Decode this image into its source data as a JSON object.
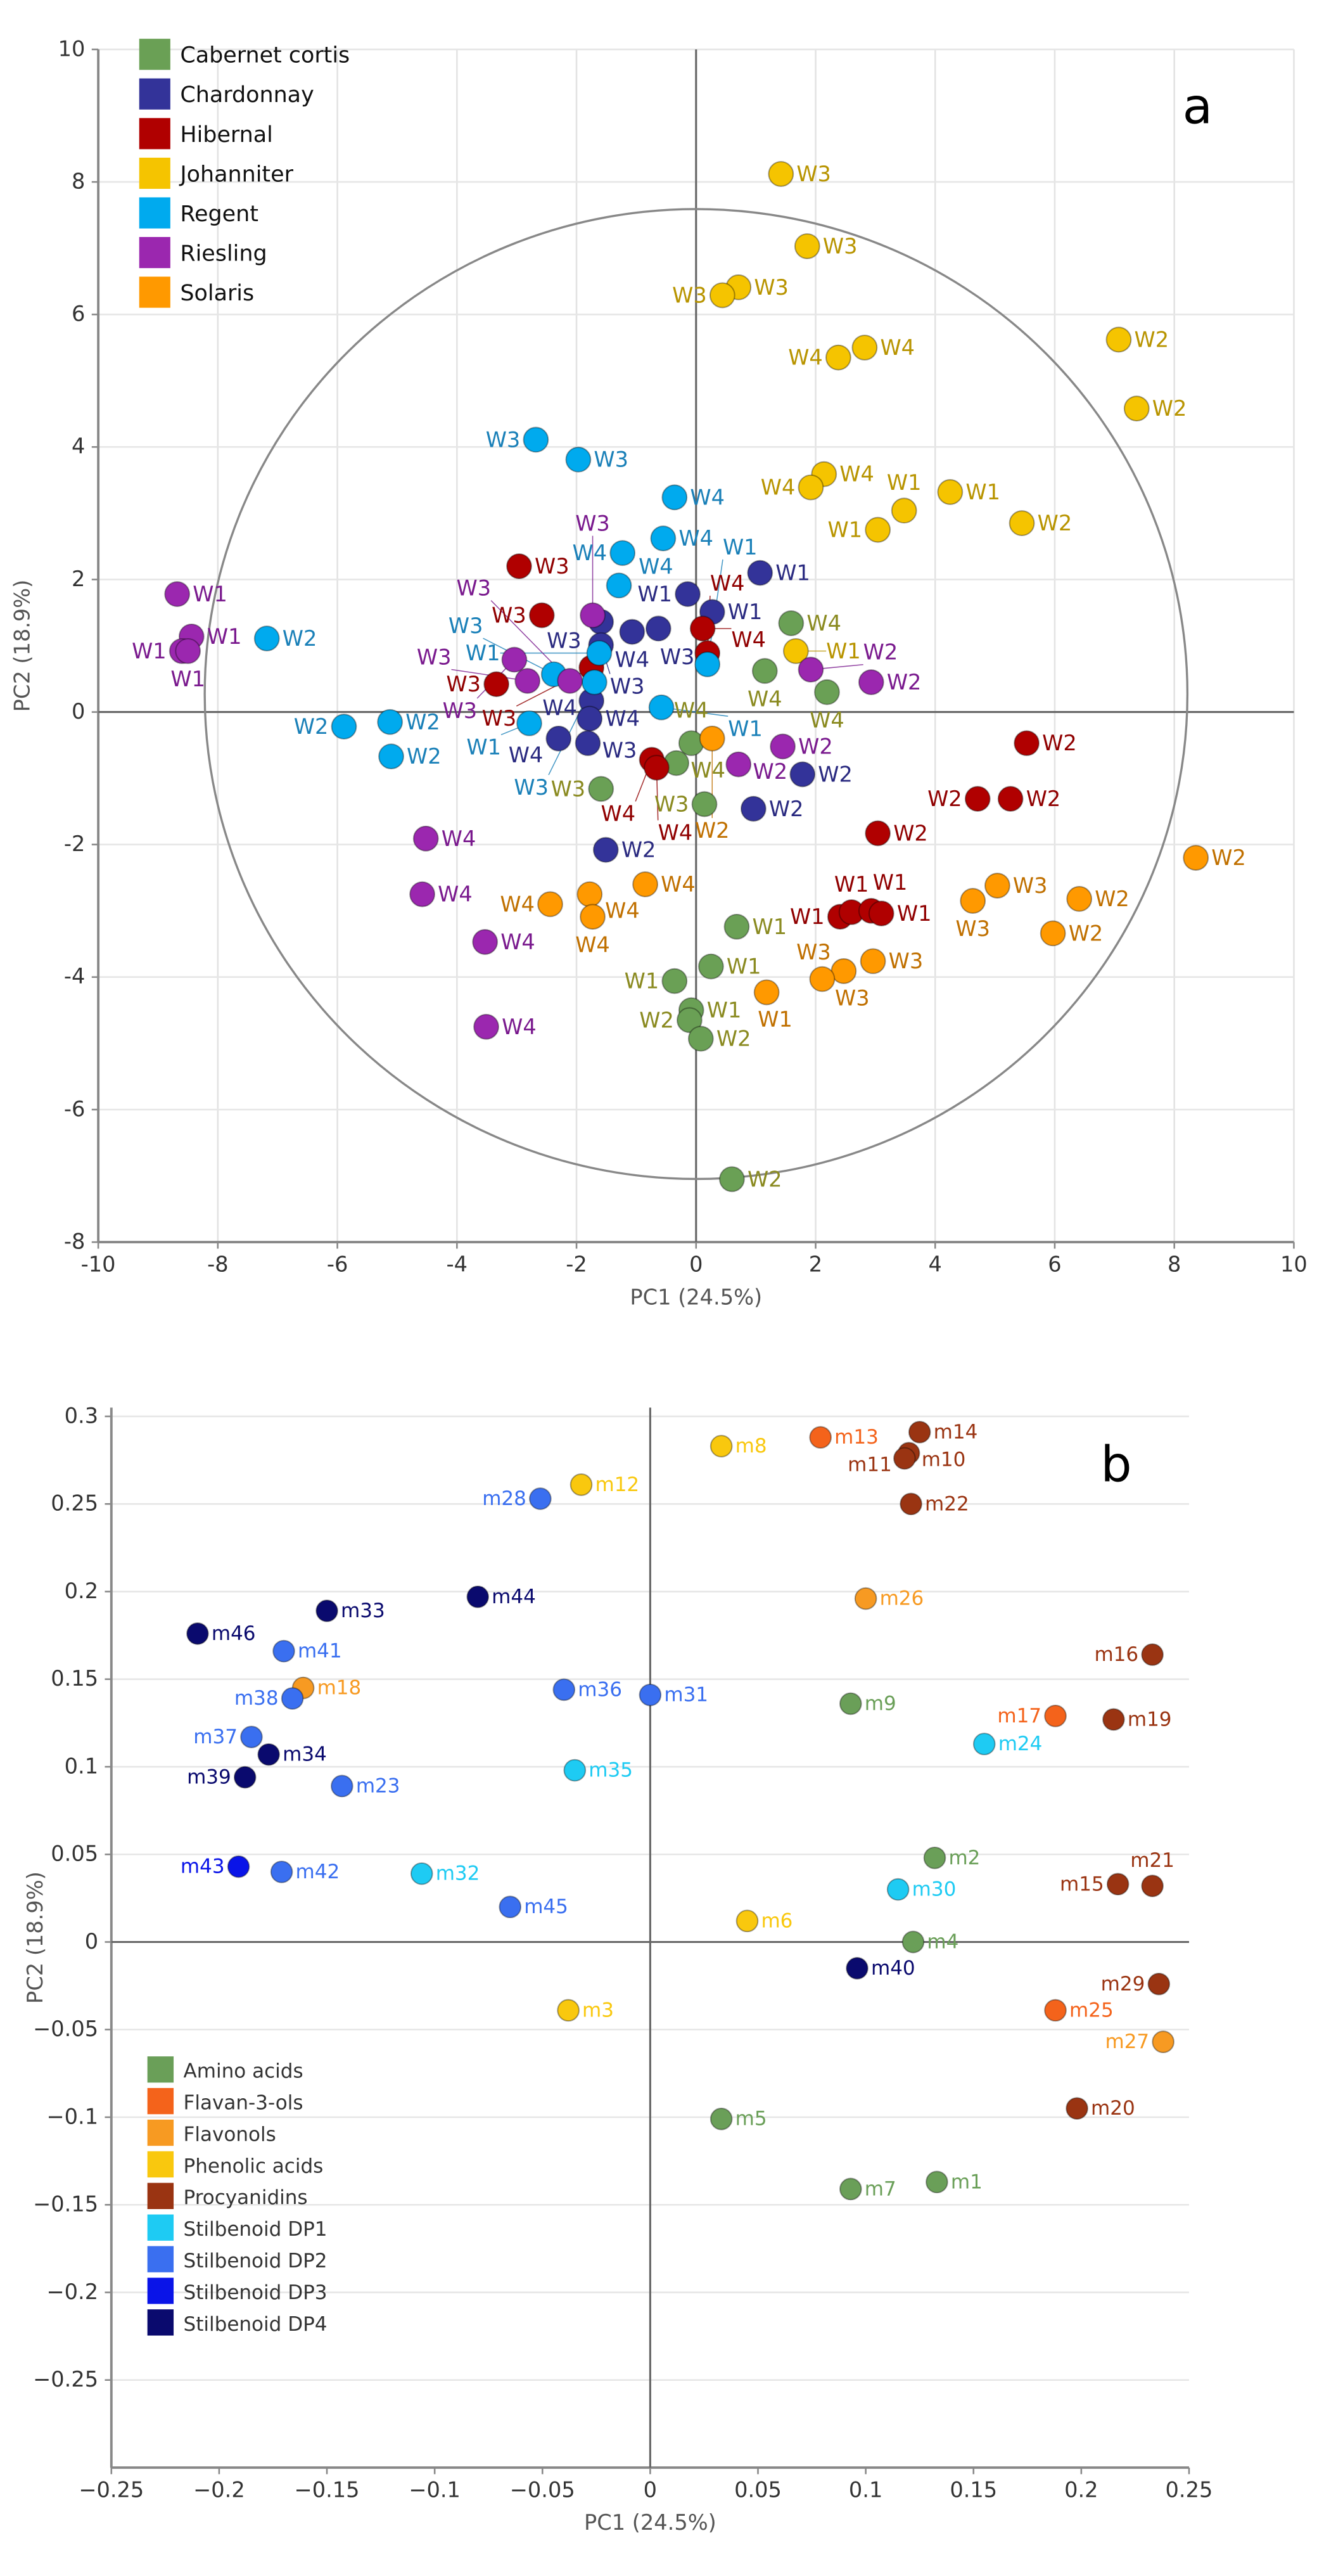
{
  "chart_data": [
    {
      "type": "scatter",
      "panel_label": "a",
      "xlabel": "PC1 (24.5%)",
      "ylabel": "PC2 (18.9%)",
      "xlim": [
        -10,
        10
      ],
      "ylim": [
        -8,
        10
      ],
      "xticks": [
        -10,
        -8,
        -6,
        -4,
        -2,
        0,
        2,
        4,
        6,
        8,
        10
      ],
      "yticks": [
        -8,
        -6,
        -4,
        -2,
        0,
        2,
        4,
        6,
        8,
        10
      ],
      "grid": true,
      "legend_position": "top-left",
      "series": [
        {
          "name": "Cabernet cortis",
          "color": "#6aa055",
          "label_color": "#8a8a20",
          "points": [
            [
              1.59,
              1.34,
              "W4"
            ],
            [
              1.15,
              0.62,
              "W4"
            ],
            [
              2.19,
              0.3,
              "W4"
            ],
            [
              -0.08,
              -0.47,
              "W4"
            ],
            [
              -0.33,
              -0.77,
              "W4"
            ],
            [
              -1.59,
              -1.16,
              "W3"
            ],
            [
              0.14,
              -1.39,
              "W3"
            ],
            [
              0.68,
              -3.24,
              "W1"
            ],
            [
              0.25,
              -3.84,
              "W1"
            ],
            [
              -0.36,
              -4.06,
              "W1"
            ],
            [
              -0.08,
              -4.5,
              "W1"
            ],
            [
              -0.11,
              -4.65,
              "W2"
            ],
            [
              0.08,
              -4.93,
              "W2"
            ],
            [
              0.6,
              -7.05,
              "W2"
            ]
          ]
        },
        {
          "name": "Chardonnay",
          "color": "#333399",
          "label_color": "#2a2a80",
          "points": [
            [
              1.07,
              2.1,
              "W1"
            ],
            [
              -0.14,
              1.78,
              "W1"
            ],
            [
              0.27,
              1.51,
              "W1"
            ],
            [
              -1.59,
              1.36,
              "W3"
            ],
            [
              -1.07,
              1.21,
              "W4"
            ],
            [
              -0.63,
              1.26,
              "W3"
            ],
            [
              -1.59,
              1.01,
              "W3"
            ],
            [
              -1.75,
              0.17,
              "W4"
            ],
            [
              -1.78,
              -0.1,
              "W4"
            ],
            [
              -2.3,
              -0.4,
              "W4"
            ],
            [
              -1.81,
              -0.47,
              "W3"
            ],
            [
              1.78,
              -0.94,
              "W2"
            ],
            [
              0.96,
              -1.46,
              "W2"
            ],
            [
              -1.51,
              -2.08,
              "W2"
            ]
          ]
        },
        {
          "name": "Hibernal",
          "color": "#b00000",
          "label_color": "#900000",
          "points": [
            [
              -2.96,
              2.2,
              "W3"
            ],
            [
              -2.58,
              1.46,
              "W3"
            ],
            [
              -3.34,
              0.42,
              "W3"
            ],
            [
              -1.75,
              0.67,
              "W3"
            ],
            [
              0.11,
              1.26,
              "W4"
            ],
            [
              0.19,
              0.89,
              "W4"
            ],
            [
              -0.74,
              -0.72,
              "W4"
            ],
            [
              -0.66,
              -0.84,
              "W4"
            ],
            [
              5.53,
              -0.47,
              "W2"
            ],
            [
              4.71,
              -1.31,
              "W2"
            ],
            [
              5.26,
              -1.31,
              "W2"
            ],
            [
              3.04,
              -1.83,
              "W2"
            ],
            [
              2.41,
              -3.09,
              "W1"
            ],
            [
              2.6,
              -3.02,
              "W1"
            ],
            [
              2.93,
              -3.0,
              "W1"
            ],
            [
              3.1,
              -3.04,
              "W1"
            ]
          ]
        },
        {
          "name": "Johanniter",
          "color": "#f5c400",
          "label_color": "#b89400",
          "points": [
            [
              1.42,
              8.12,
              "W3"
            ],
            [
              1.86,
              7.03,
              "W3"
            ],
            [
              0.71,
              6.41,
              "W3"
            ],
            [
              0.44,
              6.29,
              "W3"
            ],
            [
              2.82,
              5.5,
              "W4"
            ],
            [
              2.38,
              5.35,
              "W4"
            ],
            [
              7.07,
              5.62,
              "W2"
            ],
            [
              7.37,
              4.58,
              "W2"
            ],
            [
              2.14,
              3.59,
              "W4"
            ],
            [
              1.92,
              3.39,
              "W4"
            ],
            [
              4.25,
              3.32,
              "W1"
            ],
            [
              3.48,
              3.04,
              "W1"
            ],
            [
              3.04,
              2.75,
              "W1"
            ],
            [
              5.45,
              2.85,
              "W2"
            ],
            [
              1.67,
              0.92,
              "W1"
            ]
          ]
        },
        {
          "name": "Regent",
          "color": "#00aaee",
          "label_color": "#1a80b8",
          "points": [
            [
              -2.68,
              4.11,
              "W3"
            ],
            [
              -1.97,
              3.81,
              "W3"
            ],
            [
              -0.36,
              3.24,
              "W4"
            ],
            [
              -0.55,
              2.62,
              "W4"
            ],
            [
              -1.23,
              2.4,
              "W4"
            ],
            [
              -1.29,
              1.91,
              "W4"
            ],
            [
              -7.18,
              1.11,
              "W2"
            ],
            [
              -5.12,
              -0.15,
              "W2"
            ],
            [
              -5.89,
              -0.22,
              "W2"
            ],
            [
              -5.1,
              -0.67,
              "W2"
            ],
            [
              -1.62,
              0.89,
              "W1"
            ],
            [
              -1.7,
              0.45,
              "W3"
            ],
            [
              -2.38,
              0.57,
              "W3"
            ],
            [
              -2.79,
              -0.17,
              "W1"
            ],
            [
              -0.58,
              0.07,
              "W1"
            ],
            [
              0.19,
              0.72,
              "W1"
            ]
          ]
        },
        {
          "name": "Riesling",
          "color": "#9b27af",
          "label_color": "#7a1a8e",
          "points": [
            [
              -8.68,
              1.78,
              "W1"
            ],
            [
              -8.44,
              1.14,
              "W1"
            ],
            [
              -8.6,
              0.92,
              "W1"
            ],
            [
              -8.5,
              0.92,
              "W1"
            ],
            [
              -3.04,
              0.79,
              "W3"
            ],
            [
              -1.73,
              1.46,
              "W3"
            ],
            [
              -2.82,
              0.47,
              "W3"
            ],
            [
              -2.11,
              0.47,
              "W3"
            ],
            [
              1.92,
              0.64,
              "W2"
            ],
            [
              2.93,
              0.45,
              "W2"
            ],
            [
              1.45,
              -0.52,
              "W2"
            ],
            [
              0.71,
              -0.79,
              "W2"
            ],
            [
              -4.52,
              -1.91,
              "W4"
            ],
            [
              -4.58,
              -2.75,
              "W4"
            ],
            [
              -3.53,
              -3.47,
              "W4"
            ],
            [
              -3.51,
              -4.75,
              "W4"
            ]
          ]
        },
        {
          "name": "Solaris",
          "color": "#ff9900",
          "label_color": "#c07000",
          "points": [
            [
              0.27,
              -0.4,
              "W2"
            ],
            [
              8.36,
              -2.2,
              "W2"
            ],
            [
              5.04,
              -2.62,
              "W3"
            ],
            [
              4.63,
              -2.85,
              "W3"
            ],
            [
              6.41,
              -2.82,
              "W2"
            ],
            [
              5.97,
              -3.34,
              "W2"
            ],
            [
              -0.85,
              -2.6,
              "W4"
            ],
            [
              -1.78,
              -2.75,
              "W4"
            ],
            [
              -2.44,
              -2.9,
              "W4"
            ],
            [
              -1.73,
              -3.09,
              "W4"
            ],
            [
              2.96,
              -3.76,
              "W3"
            ],
            [
              2.47,
              -3.91,
              "W3"
            ],
            [
              2.11,
              -4.03,
              "W3"
            ],
            [
              1.18,
              -4.23,
              "W1"
            ]
          ]
        }
      ]
    },
    {
      "type": "scatter",
      "panel_label": "b",
      "xlabel": "PC1 (24.5%)",
      "ylabel": "PC2 (18.9%)",
      "xlim": [
        -0.25,
        0.25
      ],
      "ylim": [
        -0.3,
        0.305
      ],
      "xticks": [
        -0.25,
        -0.2,
        -0.15,
        -0.1,
        -0.05,
        0,
        0.05,
        0.1,
        0.15,
        0.2,
        0.25
      ],
      "xtick_labels": [
        "−0.25",
        "−0.2",
        "−0.15",
        "−0.1",
        "−0.05",
        "0",
        "0.05",
        "0.1",
        "0.15",
        "0.2",
        "0.25"
      ],
      "yticks": [
        -0.25,
        -0.2,
        -0.15,
        -0.1,
        -0.05,
        0,
        0.05,
        0.1,
        0.15,
        0.2,
        0.25,
        0.3
      ],
      "ytick_labels": [
        "−0.25",
        "−0.2",
        "−0.15",
        "−0.1",
        "−0.05",
        "0",
        "0.05",
        "0.1",
        "0.15",
        "0.2",
        "0.25",
        "0.3"
      ],
      "grid": true,
      "legend_position": "bottom-left",
      "series": [
        {
          "name": "Amino acids",
          "color": "#6a9f58",
          "points": [
            [
              0.133,
              -0.137,
              "m1"
            ],
            [
              0.132,
              0.048,
              "m2"
            ],
            [
              0.122,
              0.0,
              "m4"
            ],
            [
              0.033,
              -0.101,
              "m5"
            ],
            [
              0.093,
              -0.141,
              "m7"
            ],
            [
              0.093,
              0.136,
              "m9"
            ]
          ]
        },
        {
          "name": "Flavan-3-ols",
          "color": "#f4631b",
          "points": [
            [
              0.079,
              0.288,
              "m13"
            ],
            [
              0.188,
              0.129,
              "m17"
            ],
            [
              0.188,
              -0.039,
              "m25"
            ]
          ]
        },
        {
          "name": "Flavonols",
          "color": "#f79a22",
          "points": [
            [
              -0.161,
              0.145,
              "m18"
            ],
            [
              0.1,
              0.196,
              "m26"
            ],
            [
              0.238,
              -0.057,
              "m27"
            ]
          ]
        },
        {
          "name": "Phenolic acids",
          "color": "#f9c80e",
          "points": [
            [
              -0.038,
              -0.039,
              "m3"
            ],
            [
              0.045,
              0.012,
              "m6"
            ],
            [
              0.033,
              0.283,
              "m8"
            ],
            [
              -0.032,
              0.261,
              "m12"
            ]
          ]
        },
        {
          "name": "Procyanidins",
          "color": "#9a3412",
          "points": [
            [
              0.12,
              0.279,
              "m10"
            ],
            [
              0.118,
              0.276,
              "m11"
            ],
            [
              0.125,
              0.291,
              "m14"
            ],
            [
              0.217,
              0.033,
              "m15"
            ],
            [
              0.233,
              0.164,
              "m16"
            ],
            [
              0.215,
              0.127,
              "m19"
            ],
            [
              0.198,
              -0.095,
              "m20"
            ],
            [
              0.233,
              0.032,
              "m21"
            ],
            [
              0.121,
              0.25,
              "m22"
            ],
            [
              0.236,
              -0.024,
              "m29"
            ]
          ]
        },
        {
          "name": "Stilbenoid DP1",
          "color": "#1ecbf3",
          "points": [
            [
              0.155,
              0.113,
              "m24"
            ],
            [
              0.115,
              0.03,
              "m30"
            ],
            [
              -0.106,
              0.039,
              "m32"
            ],
            [
              -0.035,
              0.098,
              "m35"
            ]
          ]
        },
        {
          "name": "Stilbenoid DP2",
          "color": "#3a6ff0",
          "points": [
            [
              -0.143,
              0.089,
              "m23"
            ],
            [
              -0.051,
              0.253,
              "m28"
            ],
            [
              0.0,
              0.141,
              "m31"
            ],
            [
              -0.04,
              0.144,
              "m36"
            ],
            [
              -0.185,
              0.117,
              "m37"
            ],
            [
              -0.166,
              0.139,
              "m38"
            ],
            [
              -0.17,
              0.166,
              "m41"
            ],
            [
              -0.171,
              0.04,
              "m42"
            ],
            [
              -0.065,
              0.02,
              "m45"
            ]
          ]
        },
        {
          "name": "Stilbenoid DP3",
          "color": "#0a14e8",
          "points": [
            [
              -0.191,
              0.043,
              "m43"
            ]
          ]
        },
        {
          "name": "Stilbenoid DP4",
          "color": "#0a0a6e",
          "points": [
            [
              -0.15,
              0.189,
              "m33"
            ],
            [
              -0.177,
              0.107,
              "m34"
            ],
            [
              -0.188,
              0.094,
              "m39"
            ],
            [
              0.096,
              -0.015,
              "m40"
            ],
            [
              -0.08,
              0.197,
              "m44"
            ],
            [
              -0.21,
              0.176,
              "m46"
            ]
          ]
        }
      ]
    }
  ]
}
